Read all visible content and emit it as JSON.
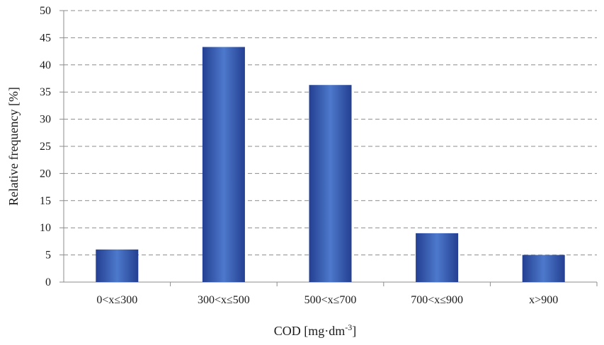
{
  "chart_data": {
    "type": "bar",
    "categories": [
      "0<x≤300",
      "300<x≤500",
      "500<x≤700",
      "700<x≤900",
      "x>900"
    ],
    "values": [
      6,
      43.3,
      36.3,
      9,
      5
    ],
    "xlabel_main": "COD [mg·dm",
    "xlabel_sup": "-3",
    "xlabel_end": "]",
    "ylabel": "Relative frequency [%]",
    "ylim": [
      0,
      50
    ],
    "yticks": [
      "0",
      "5",
      "10",
      "15",
      "20",
      "25",
      "30",
      "35",
      "40",
      "45",
      "50"
    ],
    "grid": true,
    "bar_color": "#3a5fb3"
  }
}
